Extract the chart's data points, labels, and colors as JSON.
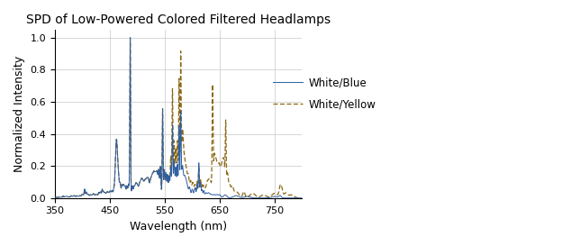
{
  "title": "SPD of Low-Powered Colored Filtered Headlamps",
  "xlabel": "Wavelength (nm)",
  "ylabel": "Normalized Intensity",
  "xlim": [
    350,
    800
  ],
  "ylim": [
    0,
    1.05
  ],
  "xticks": [
    350,
    450,
    550,
    650,
    750
  ],
  "yticks": [
    0,
    0.2,
    0.4,
    0.6,
    0.8,
    1
  ],
  "blue_color": "#2e5fa3",
  "yellow_color": "#8B6914",
  "background_color": "#ffffff",
  "legend_labels": [
    "White/Blue",
    "White/Yellow"
  ],
  "figsize": [
    6.24,
    2.73
  ],
  "dpi": 100
}
